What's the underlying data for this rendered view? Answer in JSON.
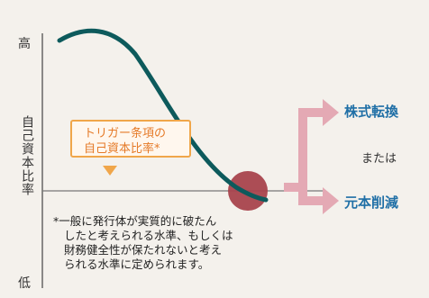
{
  "axis": {
    "y_high": "高",
    "y_label": "自己資本比率",
    "y_low": "低"
  },
  "callout": {
    "line1": "トリガー条項の",
    "line2": "自己資本比率*"
  },
  "note": {
    "line1": "*一般に発行体が実質的に破たん",
    "line2": "したと考えられる水準、もしくは",
    "line3": "財務健全性が保たれないと考え",
    "line4": "られる水準に定められます。"
  },
  "outcomes": {
    "top": "株式転換",
    "middle": "または",
    "bottom": "元本削減"
  },
  "colors": {
    "curve": "#0d5a5c",
    "trigger_circle": "#a8434d",
    "arrow": "#e4a9b4",
    "outcome_text": "#1f6fa6",
    "callout_border": "#f0a64a"
  }
}
